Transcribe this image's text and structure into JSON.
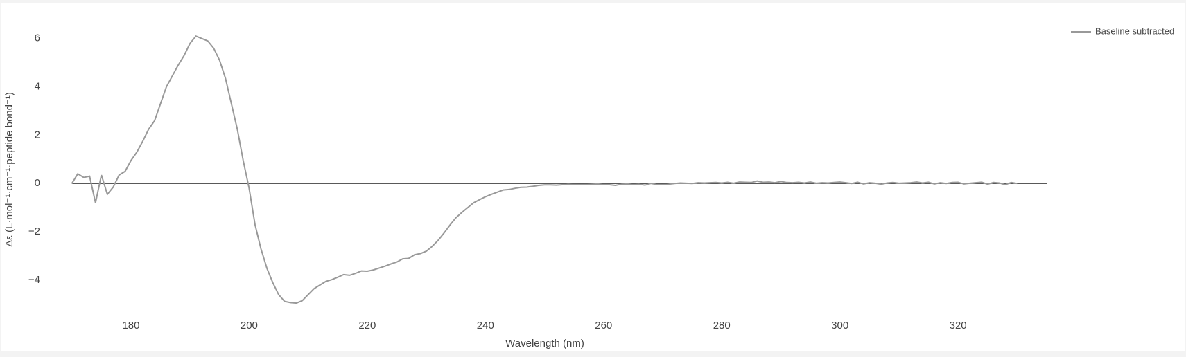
{
  "chart_data": {
    "type": "line",
    "x_label": "Wavelength (nm)",
    "y_label": "Δε (L·mol⁻¹·cm⁻¹·peptide bond⁻¹)",
    "x": [
      170,
      171,
      172,
      173,
      174,
      175,
      176,
      177,
      178,
      179,
      180,
      181,
      182,
      183,
      184,
      185,
      186,
      187,
      188,
      189,
      190,
      191,
      192,
      193,
      194,
      195,
      196,
      197,
      198,
      199,
      200,
      201,
      202,
      203,
      204,
      205,
      206,
      207,
      208,
      209,
      210,
      211,
      212,
      213,
      214,
      215,
      216,
      217,
      218,
      219,
      220,
      221,
      222,
      223,
      224,
      225,
      226,
      227,
      228,
      229,
      230,
      231,
      232,
      233,
      234,
      235,
      236,
      237,
      238,
      239,
      240,
      241,
      242,
      243,
      244,
      245,
      246,
      247,
      248,
      249,
      250,
      251,
      252,
      253,
      254,
      255,
      256,
      257,
      258,
      259,
      260,
      261,
      262,
      263,
      264,
      265,
      266,
      267,
      268,
      269,
      270,
      271,
      272,
      273,
      274,
      275,
      276,
      277,
      278,
      279,
      280,
      281,
      282,
      283,
      284,
      285,
      286,
      287,
      288,
      289,
      290,
      291,
      292,
      293,
      294,
      295,
      296,
      297,
      298,
      299,
      300,
      301,
      302,
      303,
      304,
      305,
      306,
      307,
      308,
      309,
      310,
      311,
      312,
      313,
      314,
      315,
      316,
      317,
      318,
      319,
      320,
      321,
      322,
      323,
      324,
      325,
      326,
      327,
      328,
      329,
      330
    ],
    "series": [
      {
        "name": "Baseline subtracted",
        "color": "#999999",
        "values": [
          0,
          0.4,
          0.25,
          0.3,
          -0.8,
          0.35,
          -0.45,
          -0.15,
          0.35,
          0.5,
          0.95,
          1.3,
          1.75,
          2.25,
          2.6,
          3.3,
          4.0,
          4.45,
          4.9,
          5.3,
          5.8,
          6.1,
          6.0,
          5.9,
          5.6,
          5.1,
          4.35,
          3.3,
          2.25,
          0.95,
          -0.2,
          -1.7,
          -2.7,
          -3.5,
          -4.1,
          -4.6,
          -4.88,
          -4.93,
          -4.95,
          -4.85,
          -4.6,
          -4.35,
          -4.2,
          -4.05,
          -3.98,
          -3.88,
          -3.77,
          -3.8,
          -3.72,
          -3.62,
          -3.63,
          -3.58,
          -3.5,
          -3.42,
          -3.33,
          -3.25,
          -3.12,
          -3.1,
          -2.95,
          -2.9,
          -2.8,
          -2.6,
          -2.35,
          -2.05,
          -1.72,
          -1.42,
          -1.2,
          -1.0,
          -0.8,
          -0.67,
          -0.55,
          -0.45,
          -0.36,
          -0.27,
          -0.25,
          -0.2,
          -0.16,
          -0.15,
          -0.12,
          -0.08,
          -0.06,
          -0.06,
          -0.07,
          -0.05,
          -0.03,
          -0.04,
          -0.05,
          -0.04,
          -0.03,
          -0.02,
          -0.04,
          -0.05,
          -0.08,
          -0.03,
          -0.02,
          -0.04,
          -0.03,
          -0.07,
          0.0,
          -0.04,
          -0.05,
          -0.03,
          0.0,
          0.02,
          0.01,
          0.0,
          0.03,
          0.02,
          0.03,
          0.04,
          0.02,
          0.05,
          0.01,
          0.06,
          0.05,
          0.04,
          0.1,
          0.05,
          0.06,
          0.03,
          0.08,
          0.04,
          0.03,
          0.05,
          0.02,
          0.06,
          0.01,
          0.03,
          0.02,
          0.04,
          0.06,
          0.03,
          0.0,
          0.05,
          -0.02,
          0.03,
          0.01,
          -0.03,
          0.02,
          0.04,
          0.01,
          0.02,
          0.03,
          0.06,
          0.02,
          0.05,
          -0.02,
          0.03,
          0.0,
          0.04,
          0.05,
          -0.02,
          0.01,
          0.03,
          0.05,
          -0.03,
          0.04,
          0.02,
          -0.05,
          0.04,
          0.0
        ]
      }
    ],
    "xlim": [
      170,
      335
    ],
    "ylim": [
      -5.3,
      6.6
    ],
    "xticks": [
      180,
      200,
      220,
      240,
      260,
      280,
      300,
      320
    ],
    "yticks": [
      {
        "value": -4,
        "label": "−4"
      },
      {
        "value": -2,
        "label": "−2"
      },
      0,
      2,
      4,
      6
    ],
    "zeroline": true,
    "zeroline_color": "#222222",
    "legend": "top-right"
  }
}
